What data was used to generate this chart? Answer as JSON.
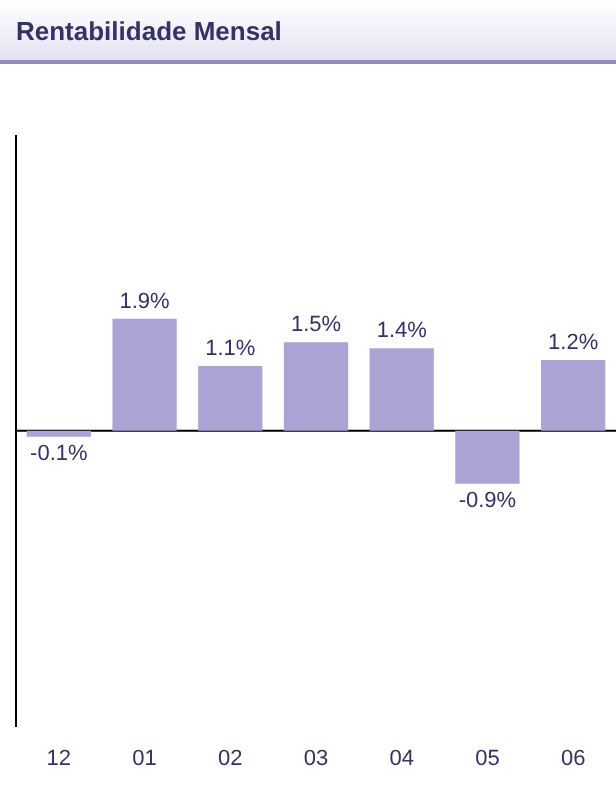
{
  "chart_data": {
    "type": "bar",
    "title": "Rentabilidade Mensal",
    "categories": [
      "12",
      "01",
      "02",
      "03",
      "04",
      "05",
      "06"
    ],
    "values": [
      -0.1,
      1.9,
      1.1,
      1.5,
      1.4,
      -0.9,
      1.2
    ],
    "value_labels": [
      "-0.1%",
      "1.9%",
      "1.1%",
      "1.5%",
      "1.4%",
      "-0.9%",
      "1.2%"
    ],
    "color": "#a9a4d4",
    "ylim": [
      -5,
      5
    ],
    "ref_lines": [
      {
        "axis": "y",
        "value": 0,
        "color": "#000000"
      }
    ],
    "tick_labels": "x",
    "grid": false,
    "legend": false
  }
}
